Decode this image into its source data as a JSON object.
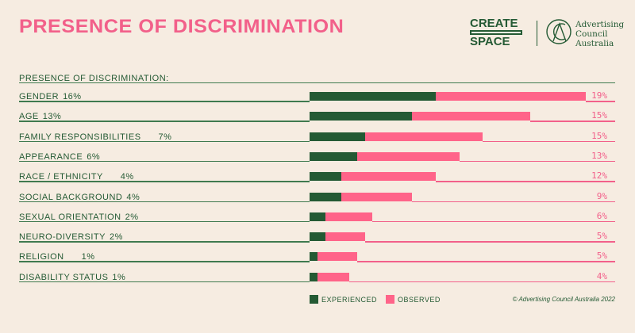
{
  "header": {
    "title": "PRESENCE OF DISCRIMINATION",
    "logo_create_space": "CREATE SPACE",
    "logo_council": "Advertising Council Australia"
  },
  "chart_data": {
    "type": "bar",
    "stacked": true,
    "title": "PRESENCE OF DISCRIMINATION:",
    "categories": [
      "GENDER",
      "AGE",
      "FAMILY RESPONSIBILITIES",
      "APPEARANCE",
      "RACE / ETHNICITY",
      "SOCIAL BACKGROUND",
      "SEXUAL ORIENTATION",
      "NEURO-DIVERSITY",
      "RELIGION",
      "DISABILITY STATUS"
    ],
    "series": [
      {
        "name": "EXPERIENCED",
        "color": "#245a34",
        "values": [
          16,
          13,
          7,
          6,
          4,
          4,
          2,
          2,
          1,
          1
        ],
        "labels": [
          "16%",
          "13%",
          "7%",
          "6%",
          "4%",
          "4%",
          "2%",
          "2%",
          "1%",
          "1%"
        ]
      },
      {
        "name": "OBSERVED",
        "color": "#ff6489",
        "values": [
          19,
          15,
          15,
          13,
          12,
          9,
          6,
          5,
          5,
          4
        ],
        "labels": [
          "19%",
          "15%",
          "15%",
          "13%",
          "12%",
          "9%",
          "6%",
          "5%",
          "5%",
          "4%"
        ]
      }
    ],
    "legend": "bottom",
    "pct_offsets": [
      null,
      null,
      "gap",
      null,
      "gap",
      null,
      null,
      null,
      "gap",
      null
    ]
  },
  "footer": {
    "copyright": "© Advertising Council Australia 2022"
  }
}
